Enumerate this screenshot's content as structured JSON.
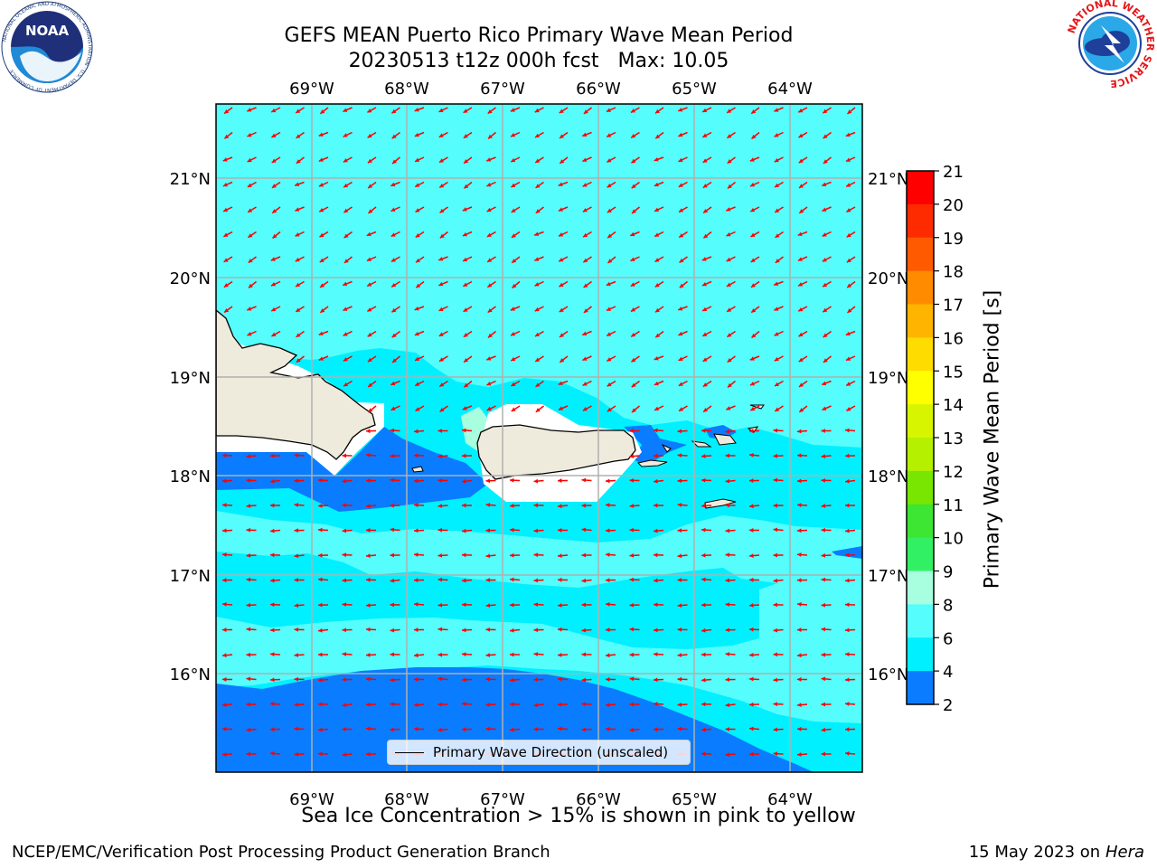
{
  "title": {
    "line1": "GEFS MEAN Puerto Rico Primary Wave Mean Period",
    "date": "20230513 t12z 000h fcst",
    "max": "Max: 10.05"
  },
  "logos": {
    "noaa_text": "NOAA",
    "noaa_ring": "NATIONAL OCEANIC AND ATMOSPHERIC ADMINISTRATION · U.S. DEPARTMENT OF COMMERCE",
    "nws_ring": "NATIONAL WEATHER SERVICE"
  },
  "map": {
    "lon_labels": [
      "69°W",
      "68°W",
      "67°W",
      "66°W",
      "65°W",
      "64°W"
    ],
    "lat_labels": [
      "21°N",
      "20°N",
      "19°N",
      "18°N",
      "17°N",
      "16°N"
    ],
    "land_color": "#efebdc",
    "ocean_colors": {
      "4-6": "#0a7cff",
      "6-8": "#00f0ff",
      "8-9": "#55fdfd",
      "9-10": "#a8ffe0"
    },
    "arrow_color": "#ff0000",
    "legend_label": "Primary Wave Direction (unscaled)"
  },
  "colorbar": {
    "label": "Primary Wave Mean Period [s]",
    "ticks": [
      "21",
      "20",
      "19",
      "18",
      "17",
      "16",
      "15",
      "14",
      "13",
      "12",
      "11",
      "10",
      "9",
      "8",
      "6",
      "4",
      "2"
    ],
    "colors": [
      "#ff0000",
      "#ff2b00",
      "#ff5a00",
      "#ff8c00",
      "#ffb400",
      "#ffdc00",
      "#ffff00",
      "#d8f500",
      "#b4f000",
      "#78e600",
      "#3ce632",
      "#32f064",
      "#a8ffe0",
      "#55fdfd",
      "#00f0ff",
      "#0a7cff",
      "#0000ff"
    ]
  },
  "caption": "Sea Ice Concentration > 15% is shown in pink to yellow",
  "credit": {
    "org": "NCEP/EMC/Verification Post Processing Product Generation Branch",
    "date": "15 May 2023 on",
    "machine": "Hera"
  }
}
